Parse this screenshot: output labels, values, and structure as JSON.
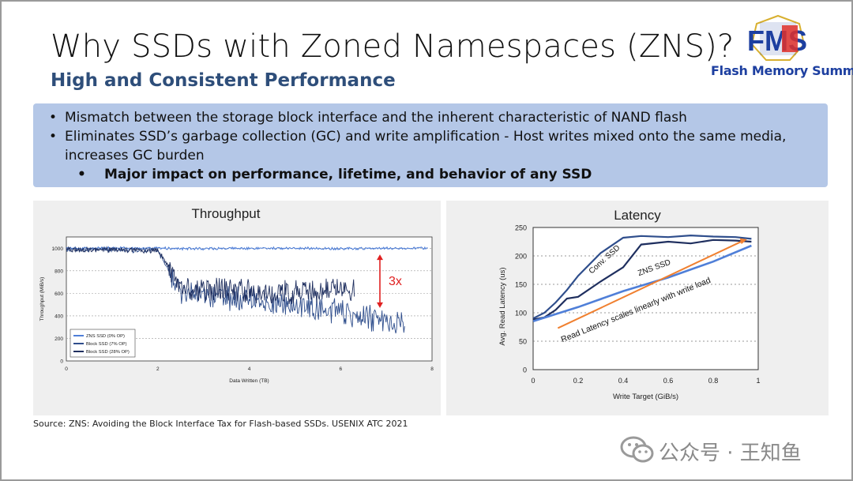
{
  "slide": {
    "title": "Why SSDs with Zoned Namespaces (ZNS)?",
    "subtitle": "High and Consistent Performance",
    "logo_text": "Flash Memory Summit",
    "logo_monogram": "FMS",
    "bullets": [
      "Mismatch between the storage block interface and the inherent characteristic of NAND flash",
      "Eliminates SSD’s garbage collection (GC) and write amplification - Host writes mixed onto the same media,",
      "increases GC burden"
    ],
    "sub_bullet": "Major impact on performance, lifetime, and behavior of any SSD",
    "source": "Source: ZNS: Avoiding the Block Interface Tax for Flash-based SSDs. USENIX ATC 2021",
    "watermark": "公众号 · 王知鱼",
    "colors": {
      "subtitle": "#2e4e7a",
      "bullet_box": "#b4c7e7",
      "zns": "#4f7fd8",
      "block7": "#2f4e8c",
      "block28": "#1f2f5f",
      "arrow_red": "#e02020",
      "arrow_orange": "#f08030"
    }
  },
  "chart_data": [
    {
      "type": "line",
      "title": "Throughput",
      "xlabel": "Data Written (TB)",
      "ylabel": "Throughput (MiB/s)",
      "xlim": [
        0,
        8
      ],
      "ylim": [
        0,
        1100
      ],
      "xticks": [
        "0",
        "2",
        "4",
        "6",
        "8"
      ],
      "yticks": [
        "0",
        "200",
        "400",
        "600",
        "800",
        "1000"
      ],
      "grid": true,
      "legend_position": "bottom-left",
      "annotation": "3x",
      "series": [
        {
          "name": "ZNS SSD (0% OP)",
          "x": [
            0,
            1,
            2,
            3,
            4,
            5,
            6,
            7,
            7.9
          ],
          "values": [
            1000,
            1000,
            1000,
            995,
            1000,
            1000,
            995,
            1000,
            1000
          ]
        },
        {
          "name": "Block SSD (7% OP)",
          "x": [
            0,
            1,
            2,
            2.3,
            2.5,
            3,
            4,
            5,
            6,
            6.5,
            7,
            7.4
          ],
          "values": [
            990,
            985,
            980,
            760,
            620,
            560,
            540,
            480,
            430,
            390,
            360,
            350
          ]
        },
        {
          "name": "Block SSD (28% OP)",
          "x": [
            0,
            1,
            2,
            2.3,
            2.5,
            3,
            4,
            5,
            6,
            6.3
          ],
          "values": [
            990,
            985,
            980,
            800,
            660,
            630,
            620,
            610,
            630,
            620
          ]
        }
      ]
    },
    {
      "type": "line",
      "title": "Latency",
      "xlabel": "Write Target (GiB/s)",
      "ylabel": "Avg. Read Latency (us)",
      "xlim": [
        0,
        1
      ],
      "ylim": [
        0,
        250
      ],
      "xticks": [
        "0",
        "0.2",
        "0.4",
        "0.6",
        "0.8",
        "1"
      ],
      "yticks": [
        "0",
        "50",
        "100",
        "150",
        "200",
        "250"
      ],
      "grid": true,
      "annotation": "Read Latency scales linearly with write load",
      "series": [
        {
          "name": "Conv. SSD",
          "x": [
            0,
            0.05,
            0.1,
            0.15,
            0.2,
            0.3,
            0.4,
            0.48,
            0.6,
            0.7,
            0.8,
            0.9,
            0.97
          ],
          "values": [
            90,
            100,
            118,
            140,
            165,
            205,
            232,
            235,
            233,
            236,
            234,
            233,
            230
          ]
        },
        {
          "name": "ZNS SSD",
          "x": [
            0,
            0.05,
            0.1,
            0.15,
            0.2,
            0.3,
            0.4,
            0.48,
            0.6,
            0.7,
            0.8,
            0.9,
            0.97
          ],
          "values": [
            88,
            92,
            105,
            125,
            128,
            155,
            180,
            220,
            225,
            222,
            228,
            227,
            225
          ]
        },
        {
          "name": "",
          "x": [
            0,
            0.2,
            0.4,
            0.6,
            0.8,
            0.97
          ],
          "values": [
            85,
            110,
            138,
            162,
            190,
            218
          ]
        }
      ]
    }
  ]
}
